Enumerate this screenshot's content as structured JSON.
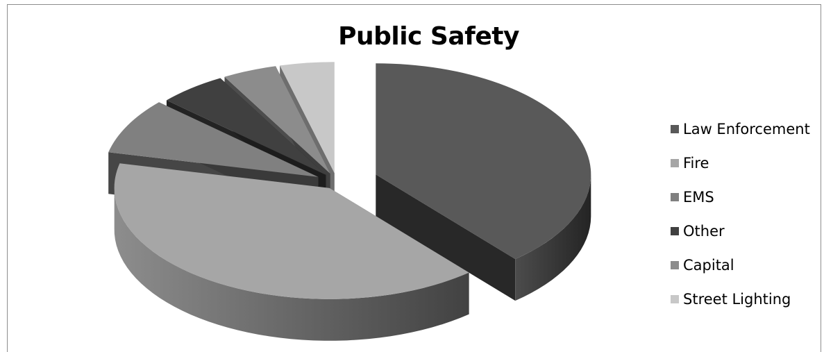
{
  "chart_data": {
    "type": "pie",
    "title": "Public Safety",
    "categories": [
      "Law Enforcement",
      "Fire",
      "EMS",
      "Other",
      "Capital",
      "Street Lighting"
    ],
    "values": [
      38,
      39,
      8,
      5,
      4,
      4
    ],
    "colors": [
      "#595959",
      "#a6a6a6",
      "#808080",
      "#404040",
      "#8c8c8c",
      "#c8c8c8"
    ],
    "legend_position": "right",
    "style": "3d-exploded"
  }
}
